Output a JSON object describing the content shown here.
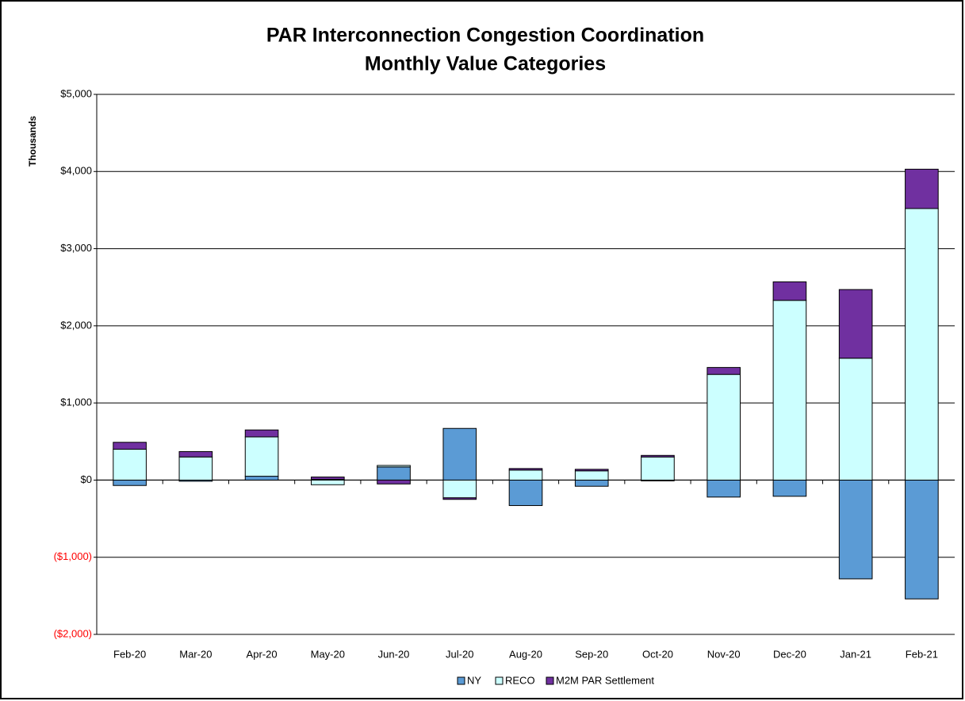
{
  "chart_data": {
    "type": "bar",
    "stacked": true,
    "title": [
      "PAR Interconnection Congestion Coordination",
      "Monthly Value Categories"
    ],
    "y_label": "Thousands",
    "categories": [
      "Feb-20",
      "Mar-20",
      "Apr-20",
      "May-20",
      "Jun-20",
      "Jul-20",
      "Aug-20",
      "Sep-20",
      "Oct-20",
      "Nov-20",
      "Dec-20",
      "Jan-21",
      "Feb-21"
    ],
    "series": [
      {
        "name": "NY",
        "color": "#5b9bd5",
        "values": [
          -70,
          -15,
          50,
          10,
          170,
          670,
          -330,
          -80,
          -10,
          -220,
          -210,
          -1280,
          -1540
        ]
      },
      {
        "name": "RECO",
        "color": "#ccffff",
        "values": [
          400,
          300,
          510,
          -60,
          20,
          -230,
          130,
          120,
          300,
          1370,
          2330,
          1580,
          3520
        ]
      },
      {
        "name": "M2M PAR Settlement",
        "color": "#7030a0",
        "values": [
          90,
          70,
          90,
          30,
          -50,
          -20,
          20,
          20,
          20,
          90,
          240,
          890,
          510
        ]
      }
    ],
    "ylim": [
      -2000,
      5000
    ],
    "yticks": [
      {
        "value": -2000,
        "label": "($2,000)"
      },
      {
        "value": -1000,
        "label": "($1,000)"
      },
      {
        "value": 0,
        "label": "$0"
      },
      {
        "value": 1000,
        "label": "$1,000"
      },
      {
        "value": 2000,
        "label": "$2,000"
      },
      {
        "value": 3000,
        "label": "$3,000"
      },
      {
        "value": 4000,
        "label": "$4,000"
      },
      {
        "value": 5000,
        "label": "$5,000"
      }
    ],
    "negative_tick_color": "#ff0000",
    "grid": true,
    "legend": "bottom"
  }
}
